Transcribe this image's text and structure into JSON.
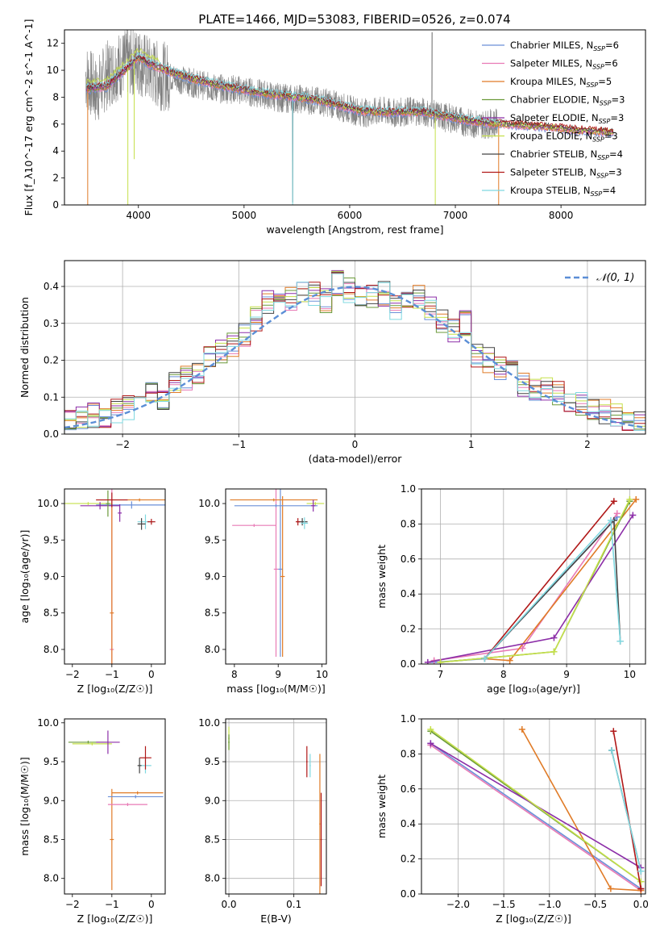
{
  "figure": {
    "title": "PLATE=1466, MJD=53083, FIBERID=0526, z=0.074"
  },
  "chart_data": [
    {
      "id": "spectrum",
      "type": "line",
      "title": "PLATE=1466, MJD=53083, FIBERID=0526, z=0.074",
      "xlabel": "wavelength [Angstrom, rest frame]",
      "ylabel": "Flux [f_λ10^-17 erg cm^-2 s^-1 A^-1]",
      "xlim": [
        3300,
        8800
      ],
      "ylim": [
        0,
        13
      ],
      "xticks": [
        4000,
        5000,
        6000,
        7000,
        8000
      ],
      "yticks": [
        0,
        2,
        4,
        6,
        8,
        10,
        12
      ],
      "grid": false,
      "legend_position": "top-right",
      "observed": {
        "name": "",
        "color": "#808080",
        "x": [
          3500,
          3600,
          3700,
          3800,
          3900,
          4000,
          4100,
          4200,
          4300,
          4400,
          4500,
          4600,
          4700,
          4800,
          4900,
          5000,
          5100,
          5200,
          5300,
          5400,
          5500,
          5600,
          5700,
          5800,
          5900,
          6000,
          6100,
          6200,
          6300,
          6400,
          6500,
          6600,
          6700,
          6800,
          6900,
          7000,
          7100,
          7200,
          7300,
          7400
        ],
        "y": [
          9.6,
          8.4,
          9.6,
          10.3,
          10.6,
          10.7,
          10.0,
          9.6,
          9.5,
          9.3,
          9.1,
          8.9,
          8.7,
          8.6,
          8.6,
          8.5,
          8.3,
          8.2,
          8.0,
          7.9,
          7.9,
          7.8,
          7.7,
          7.6,
          7.3,
          7.1,
          6.9,
          6.8,
          7.0,
          6.8,
          6.9,
          7.0,
          6.9,
          6.7,
          6.5,
          6.4,
          6.1,
          6.0,
          6.0,
          6.1
        ]
      },
      "series": [
        {
          "name": "Chabrier MILES, N_SSP=6",
          "color": "#6a8fd8"
        },
        {
          "name": "Salpeter MILES, N_SSP=6",
          "color": "#e87ab5"
        },
        {
          "name": "Kroupa MILES, N_SSP=5",
          "color": "#e07b27"
        },
        {
          "name": "Chabrier ELODIE, N_SSP=3",
          "color": "#6b9a3a"
        },
        {
          "name": "Salpeter ELODIE, N_SSP=3",
          "color": "#8c2ea8"
        },
        {
          "name": "Kroupa ELODIE, N_SSP=3",
          "color": "#c5e04a"
        },
        {
          "name": "Chabrier STELIB, N_SSP=4",
          "color": "#444444"
        },
        {
          "name": "Salpeter STELIB, N_SSP=3",
          "color": "#b01818"
        },
        {
          "name": "Kroupa STELIB, N_SSP=4",
          "color": "#7fd8e0"
        }
      ],
      "model": {
        "x": [
          3500,
          3700,
          3900,
          4000,
          4100,
          4300,
          4500,
          4700,
          4900,
          5100,
          5300,
          5500,
          5700,
          5900,
          6100,
          6300,
          6500,
          6700,
          6900,
          7100,
          7300,
          7500,
          7700,
          7900,
          8100,
          8300,
          8500
        ],
        "y": [
          8.6,
          8.8,
          10.2,
          11.0,
          10.5,
          9.9,
          9.4,
          9.0,
          8.7,
          8.4,
          8.2,
          8.0,
          7.8,
          7.4,
          7.0,
          6.9,
          6.9,
          6.9,
          6.6,
          6.3,
          6.1,
          6.0,
          5.9,
          5.8,
          5.6,
          5.5,
          5.4
        ]
      }
    },
    {
      "id": "residuals",
      "type": "bar",
      "xlabel": "(data-model)/error",
      "ylabel": "Normed distribution",
      "xlim": [
        -2.5,
        2.5
      ],
      "ylim": [
        0,
        0.47
      ],
      "xticks": [
        -2,
        -1,
        0,
        1,
        2
      ],
      "yticks": [
        0.0,
        0.1,
        0.2,
        0.3,
        0.4
      ],
      "grid": true,
      "legend_position": "top-right",
      "legend_entry": "𝒩(0, 1)",
      "reference_curve_color": "#5b8ed6",
      "bin_edges": [
        -2.5,
        -2.4,
        -2.3,
        -2.2,
        -2.1,
        -2.0,
        -1.9,
        -1.8,
        -1.7,
        -1.6,
        -1.5,
        -1.4,
        -1.3,
        -1.2,
        -1.1,
        -1.0,
        -0.9,
        -0.8,
        -0.7,
        -0.6,
        -0.5,
        -0.4,
        -0.3,
        -0.2,
        -0.1,
        0.0,
        0.1,
        0.2,
        0.3,
        0.4,
        0.5,
        0.6,
        0.7,
        0.8,
        0.9,
        1.0,
        1.1,
        1.2,
        1.3,
        1.4,
        1.5,
        1.6,
        1.7,
        1.8,
        1.9,
        2.0,
        2.1,
        2.2,
        2.3,
        2.4,
        2.5
      ],
      "mean_density": [
        0.03,
        0.04,
        0.05,
        0.05,
        0.06,
        0.07,
        0.08,
        0.11,
        0.1,
        0.14,
        0.15,
        0.17,
        0.21,
        0.22,
        0.24,
        0.27,
        0.31,
        0.36,
        0.35,
        0.37,
        0.39,
        0.38,
        0.36,
        0.41,
        0.39,
        0.37,
        0.37,
        0.38,
        0.34,
        0.36,
        0.37,
        0.34,
        0.31,
        0.28,
        0.3,
        0.21,
        0.2,
        0.18,
        0.19,
        0.13,
        0.12,
        0.12,
        0.11,
        0.09,
        0.08,
        0.06,
        0.06,
        0.05,
        0.04,
        0.03
      ]
    },
    {
      "id": "age-vs-Z",
      "type": "scatter",
      "xlabel": "Z [log₁₀(Z/Z☉)]",
      "ylabel": "age [log₁₀(age/yr)]",
      "xlim": [
        -2.2,
        0.35
      ],
      "ylim": [
        7.8,
        10.2
      ],
      "xticks": [
        -2,
        -1,
        0
      ],
      "yticks": [
        8.0,
        8.5,
        9.0,
        9.5,
        10.0
      ],
      "grid": false,
      "points": [
        {
          "x": -1.0,
          "y": 8.0,
          "xerr": 0.05,
          "yerr": 2.2,
          "color": "#e87ab5"
        },
        {
          "x": -1.0,
          "y": 8.5,
          "xerr": 0.05,
          "yerr": 1.5,
          "color": "#e07b27"
        },
        {
          "x": -0.5,
          "y": 9.98,
          "xerr": 0.9,
          "yerr": 0.05,
          "color": "#6a8fd8"
        },
        {
          "x": -0.3,
          "y": 10.05,
          "xerr": 1.1,
          "yerr": 0.02,
          "color": "#e07b27"
        },
        {
          "x": -1.6,
          "y": 10.0,
          "xerr": 0.6,
          "yerr": 0.02,
          "color": "#c5e04a"
        },
        {
          "x": -1.3,
          "y": 9.97,
          "xerr": 0.5,
          "yerr": 0.05,
          "color": "#8c2ea8"
        },
        {
          "x": -0.8,
          "y": 9.87,
          "xerr": 0.05,
          "yerr": 0.12,
          "color": "#8c2ea8"
        },
        {
          "x": -1.1,
          "y": 10.0,
          "xerr": 0.05,
          "yerr": 0.18,
          "color": "#6b9a3a"
        },
        {
          "x": -0.15,
          "y": 9.75,
          "xerr": 0.2,
          "yerr": 0.1,
          "color": "#7fd8e0"
        },
        {
          "x": -0.25,
          "y": 9.72,
          "xerr": 0.1,
          "yerr": 0.08,
          "color": "#444444"
        },
        {
          "x": 0.0,
          "y": 9.75,
          "xerr": 0.1,
          "yerr": 0.04,
          "color": "#b01818"
        },
        {
          "x": -1.0,
          "y": 10.05,
          "xerr": 0.4,
          "yerr": 0.1,
          "color": "#b01818"
        }
      ]
    },
    {
      "id": "age-vs-mass",
      "type": "scatter",
      "xlabel": "mass [log₁₀(M/M☉)]",
      "ylabel": "",
      "xlim": [
        7.8,
        10.1
      ],
      "ylim": [
        7.8,
        10.2
      ],
      "xticks": [
        8,
        9,
        10
      ],
      "yticks": [
        8.0,
        8.5,
        9.0,
        9.5,
        10.0
      ],
      "grid": false,
      "points": [
        {
          "x": 8.95,
          "y": 9.1,
          "xerr": 0.05,
          "yerr": 1.2,
          "color": "#e87ab5"
        },
        {
          "x": 9.05,
          "y": 9.1,
          "xerr": 0.05,
          "yerr": 1.2,
          "color": "#6a8fd8"
        },
        {
          "x": 9.1,
          "y": 9.0,
          "xerr": 0.05,
          "yerr": 1.1,
          "color": "#e07b27"
        },
        {
          "x": 8.9,
          "y": 10.05,
          "xerr": 1.0,
          "yerr": 0.02,
          "color": "#e07b27"
        },
        {
          "x": 8.95,
          "y": 9.97,
          "xerr": 0.95,
          "yerr": 0.02,
          "color": "#6a8fd8"
        },
        {
          "x": 8.45,
          "y": 9.7,
          "xerr": 0.5,
          "yerr": 0.02,
          "color": "#e87ab5"
        },
        {
          "x": 9.85,
          "y": 10.0,
          "xerr": 0.2,
          "yerr": 0.02,
          "color": "#c5e04a"
        },
        {
          "x": 9.55,
          "y": 9.75,
          "xerr": 0.12,
          "yerr": 0.05,
          "color": "#444444"
        },
        {
          "x": 9.6,
          "y": 9.73,
          "xerr": 0.08,
          "yerr": 0.08,
          "color": "#7fd8e0"
        },
        {
          "x": 9.45,
          "y": 9.75,
          "xerr": 0.05,
          "yerr": 0.05,
          "color": "#b01818"
        },
        {
          "x": 9.8,
          "y": 9.97,
          "xerr": 0.05,
          "yerr": 0.08,
          "color": "#8c2ea8"
        }
      ]
    },
    {
      "id": "weight-vs-age",
      "type": "line",
      "xlabel": "age [log₁₀(age/yr)]",
      "ylabel": "mass weight",
      "xlim": [
        6.7,
        10.25
      ],
      "ylim": [
        0,
        1.0
      ],
      "xticks": [
        7,
        8,
        9,
        10
      ],
      "yticks": [
        0.0,
        0.2,
        0.4,
        0.6,
        0.8,
        1.0
      ],
      "grid": true,
      "series": [
        {
          "name": "Chabrier MILES",
          "color": "#6a8fd8",
          "x": [
            6.9,
            7.7,
            9.8
          ],
          "y": [
            0.01,
            0.03,
            0.84
          ]
        },
        {
          "name": "Salpeter MILES",
          "color": "#e87ab5",
          "x": [
            6.9,
            8.3,
            9.8
          ],
          "y": [
            0.02,
            0.09,
            0.86
          ]
        },
        {
          "name": "Kroupa MILES",
          "color": "#e07b27",
          "x": [
            7.7,
            8.1,
            10.1
          ],
          "y": [
            0.03,
            0.02,
            0.94
          ]
        },
        {
          "name": "Chabrier ELODIE",
          "color": "#6b9a3a",
          "x": [
            7.0,
            8.8,
            10.0
          ],
          "y": [
            0.01,
            0.07,
            0.93
          ]
        },
        {
          "name": "Salpeter ELODIE",
          "color": "#8c2ea8",
          "x": [
            6.8,
            8.8,
            10.05
          ],
          "y": [
            0.01,
            0.15,
            0.85
          ]
        },
        {
          "name": "Kroupa ELODIE",
          "color": "#c5e04a",
          "x": [
            7.0,
            8.8,
            10.0
          ],
          "y": [
            0.01,
            0.07,
            0.94
          ]
        },
        {
          "name": "Chabrier STELIB",
          "color": "#444444",
          "x": [
            7.7,
            9.75,
            9.85
          ],
          "y": [
            0.03,
            0.82,
            0.13
          ]
        },
        {
          "name": "Salpeter STELIB",
          "color": "#b01818",
          "x": [
            7.7,
            9.75
          ],
          "y": [
            0.03,
            0.93
          ]
        },
        {
          "name": "Kroupa STELIB",
          "color": "#7fd8e0",
          "x": [
            7.7,
            9.7,
            9.85
          ],
          "y": [
            0.03,
            0.82,
            0.13
          ]
        }
      ]
    },
    {
      "id": "mass-vs-Z",
      "type": "scatter",
      "xlabel": "Z [log₁₀(Z/Z☉)]",
      "ylabel": "mass [log₁₀(M/M☉)]",
      "xlim": [
        -2.2,
        0.35
      ],
      "ylim": [
        7.8,
        10.05
      ],
      "xticks": [
        -2,
        -1,
        0
      ],
      "yticks": [
        8.0,
        8.5,
        9.0,
        9.5,
        10.0
      ],
      "grid": false,
      "points": [
        {
          "x": -1.0,
          "y": 8.5,
          "xerr": 0.05,
          "yerr": 0.65,
          "color": "#e07b27"
        },
        {
          "x": -0.35,
          "y": 9.1,
          "xerr": 0.65,
          "yerr": 0.02,
          "color": "#e07b27"
        },
        {
          "x": -0.4,
          "y": 9.05,
          "xerr": 0.7,
          "yerr": 0.02,
          "color": "#6a8fd8"
        },
        {
          "x": -0.6,
          "y": 8.95,
          "xerr": 0.5,
          "yerr": 0.02,
          "color": "#e87ab5"
        },
        {
          "x": -1.6,
          "y": 9.75,
          "xerr": 0.5,
          "yerr": 0.02,
          "color": "#6b9a3a"
        },
        {
          "x": -1.5,
          "y": 9.73,
          "xerr": 0.5,
          "yerr": 0.02,
          "color": "#c5e04a"
        },
        {
          "x": -1.1,
          "y": 9.75,
          "xerr": 0.3,
          "yerr": 0.15,
          "color": "#8c2ea8"
        },
        {
          "x": -0.15,
          "y": 9.45,
          "xerr": 0.15,
          "yerr": 0.1,
          "color": "#7fd8e0"
        },
        {
          "x": -0.15,
          "y": 9.55,
          "xerr": 0.15,
          "yerr": 0.15,
          "color": "#b01818"
        },
        {
          "x": -0.3,
          "y": 9.45,
          "xerr": 0.05,
          "yerr": 0.1,
          "color": "#444444"
        }
      ]
    },
    {
      "id": "mass-vs-EBV",
      "type": "scatter",
      "xlabel": "E(B-V)",
      "ylabel": "",
      "xlim": [
        -0.005,
        0.15
      ],
      "ylim": [
        7.8,
        10.05
      ],
      "xticks": [
        0.0,
        0.1
      ],
      "yticks": [
        8.0,
        8.5,
        9.0,
        9.5,
        10.0
      ],
      "grid": true,
      "points": [
        {
          "x": 0.0,
          "y": 9.8,
          "xerr": 0.001,
          "yerr": 0.15,
          "color": "#c5e04a"
        },
        {
          "x": 0.0,
          "y": 9.75,
          "xerr": 0.001,
          "yerr": 0.1,
          "color": "#6b9a3a"
        },
        {
          "x": 0.12,
          "y": 9.5,
          "xerr": 0.001,
          "yerr": 0.2,
          "color": "#b01818"
        },
        {
          "x": 0.125,
          "y": 9.45,
          "xerr": 0.001,
          "yerr": 0.15,
          "color": "#7fd8e0"
        },
        {
          "x": 0.14,
          "y": 8.7,
          "xerr": 0.001,
          "yerr": 0.9,
          "color": "#e07b27"
        },
        {
          "x": 0.142,
          "y": 8.5,
          "xerr": 0.001,
          "yerr": 0.6,
          "color": "#b01818"
        }
      ]
    },
    {
      "id": "weight-vs-Z",
      "type": "line",
      "xlabel": "Z [log₁₀(Z/Z☉)]",
      "ylabel": "mass weight",
      "xlim": [
        -2.4,
        0.05
      ],
      "ylim": [
        0,
        1.0
      ],
      "xticks": [
        -2.0,
        -1.5,
        -1.0,
        -0.5,
        0.0
      ],
      "yticks": [
        0.0,
        0.2,
        0.4,
        0.6,
        0.8,
        1.0
      ],
      "grid": true,
      "series": [
        {
          "name": "Chabrier MILES",
          "color": "#6a8fd8",
          "x": [
            -2.3,
            0.0
          ],
          "y": [
            0.86,
            0.03
          ]
        },
        {
          "name": "Salpeter MILES",
          "color": "#e87ab5",
          "x": [
            -2.3,
            0.0
          ],
          "y": [
            0.85,
            0.02
          ]
        },
        {
          "name": "Kroupa MILES",
          "color": "#e07b27",
          "x": [
            -1.3,
            -0.33,
            0.0
          ],
          "y": [
            0.94,
            0.03,
            0.02
          ]
        },
        {
          "name": "Chabrier ELODIE",
          "color": "#6b9a3a",
          "x": [
            -2.3,
            0.0
          ],
          "y": [
            0.93,
            0.07
          ]
        },
        {
          "name": "Salpeter ELODIE",
          "color": "#8c2ea8",
          "x": [
            -2.3,
            0.0
          ],
          "y": [
            0.86,
            0.15
          ]
        },
        {
          "name": "Kroupa ELODIE",
          "color": "#c5e04a",
          "x": [
            -2.3,
            0.0
          ],
          "y": [
            0.94,
            0.07
          ]
        },
        {
          "name": "Chabrier STELIB",
          "color": "#444444",
          "x": [
            -0.32,
            0.0
          ],
          "y": [
            0.82,
            0.13
          ]
        },
        {
          "name": "Salpeter STELIB",
          "color": "#b01818",
          "x": [
            -0.3,
            0.0
          ],
          "y": [
            0.93,
            0.03
          ]
        },
        {
          "name": "Kroupa STELIB",
          "color": "#7fd8e0",
          "x": [
            -0.32,
            0.0
          ],
          "y": [
            0.82,
            0.13
          ]
        }
      ]
    }
  ]
}
